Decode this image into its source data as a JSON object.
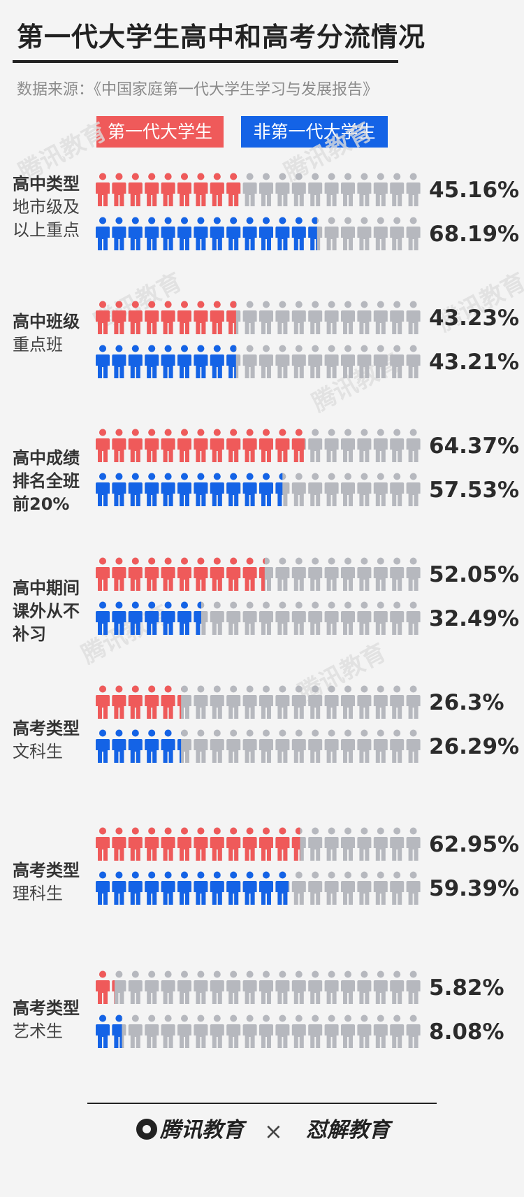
{
  "title": "第一代大学生高中和高考分流情况",
  "source": "数据来源：《中国家庭第一代大学生学习与发展报告》",
  "legend": {
    "first_gen": "第一代大学生",
    "non_first_gen": "非第一代大学生"
  },
  "colors": {
    "first_gen": "#ef5a5a",
    "non_first_gen": "#1463e6",
    "remainder": "#b6b8be"
  },
  "watermark": "腾讯教育",
  "footer": {
    "logo_left": "腾讯教育",
    "times": "×",
    "logo_right": "怼解教育"
  },
  "chart_data": {
    "type": "pictogram",
    "icons_per_row": 20,
    "series": [
      {
        "name": "第一代大学生"
      },
      {
        "name": "非第一代大学生"
      }
    ],
    "categories": [
      {
        "main": "高中类型",
        "sub": "地市级及以上重点",
        "values": [
          45.16,
          68.19
        ],
        "labels": [
          "45.16%",
          "68.19%"
        ]
      },
      {
        "main": "高中班级",
        "sub": "重点班",
        "values": [
          43.23,
          43.21
        ],
        "labels": [
          "43.23%",
          "43.21%"
        ]
      },
      {
        "main": "高中成绩排名全班前20%",
        "sub": "",
        "values": [
          64.37,
          57.53
        ],
        "labels": [
          "64.37%",
          "57.53%"
        ]
      },
      {
        "main": "高中期间课外从不补习",
        "sub": "",
        "values": [
          52.05,
          32.49
        ],
        "labels": [
          "52.05%",
          "32.49%"
        ]
      },
      {
        "main": "高考类型",
        "sub": "文科生",
        "values": [
          26.3,
          26.29
        ],
        "labels": [
          "26.3%",
          "26.29%"
        ]
      },
      {
        "main": "高考类型",
        "sub": "理科生",
        "values": [
          62.95,
          59.39
        ],
        "labels": [
          "62.95%",
          "59.39%"
        ]
      },
      {
        "main": "高考类型",
        "sub": "艺术生",
        "values": [
          5.82,
          8.08
        ],
        "labels": [
          "5.82%",
          "8.08%"
        ]
      }
    ]
  }
}
